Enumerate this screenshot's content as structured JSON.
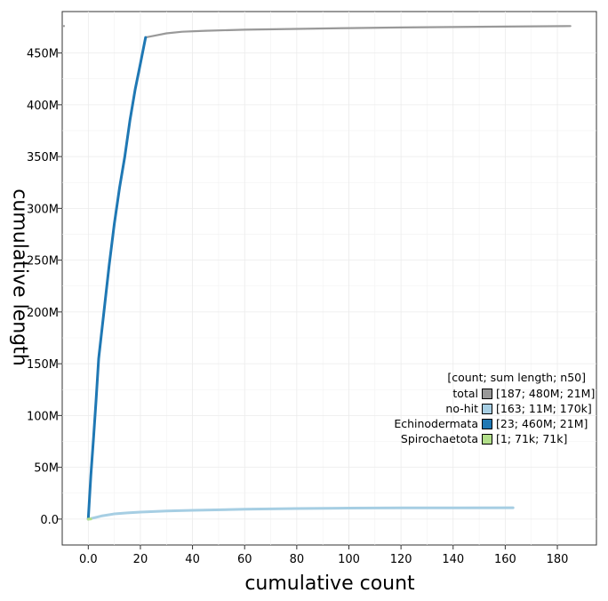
{
  "chart_data": {
    "type": "line",
    "xlabel": "cumulative count",
    "ylabel": "cumulative length",
    "xlim": [
      -10,
      195
    ],
    "ylim": [
      -25,
      490
    ],
    "x_ticks": [
      0,
      20,
      40,
      60,
      80,
      100,
      120,
      140,
      160,
      180
    ],
    "x_tick_labels": [
      "0.0",
      "20",
      "40",
      "60",
      "80",
      "100",
      "120",
      "140",
      "160",
      "180"
    ],
    "y_ticks": [
      0,
      50,
      100,
      150,
      200,
      250,
      300,
      350,
      400,
      450
    ],
    "y_tick_labels": [
      "0.0",
      "50M",
      "100M",
      "150M",
      "200M",
      "250M",
      "300M",
      "350M",
      "400M",
      "450M"
    ],
    "grid": true,
    "legend": {
      "title": "[count; sum length; n50]",
      "position": "right",
      "entries": [
        {
          "name": "total",
          "color": "#999999",
          "label": "[187; 480M; 21M]"
        },
        {
          "name": "no-hit",
          "color": "#a6cee3",
          "label": "[163; 11M; 170k]"
        },
        {
          "name": "Echinodermata",
          "color": "#1f78b4",
          "label": "[23; 460M; 21M]"
        },
        {
          "name": "Spirochaetota",
          "color": "#b2df8a",
          "label": "[1; 71k; 71k]"
        }
      ]
    },
    "series": [
      {
        "name": "total",
        "color": "#999999",
        "x": [
          22,
          26,
          30,
          36,
          45,
          60,
          80,
          100,
          120,
          140,
          160,
          185
        ],
        "y": [
          465,
          467,
          469,
          470.5,
          471.5,
          472.5,
          473.3,
          474,
          474.6,
          475.1,
          475.5,
          476
        ]
      },
      {
        "name": "no-hit",
        "color": "#a6cee3",
        "x": [
          1,
          5,
          10,
          15,
          20,
          30,
          40,
          60,
          80,
          100,
          120,
          140,
          163
        ],
        "y": [
          0.5,
          3,
          5,
          6,
          6.8,
          7.8,
          8.5,
          9.5,
          10.2,
          10.6,
          10.8,
          10.9,
          11
        ]
      },
      {
        "name": "Echinodermata",
        "color": "#1f78b4",
        "x": [
          0,
          1,
          2,
          3,
          4,
          6,
          8,
          10,
          12,
          14,
          16,
          18,
          20,
          22
        ],
        "y": [
          0,
          42,
          78,
          115,
          155,
          200,
          245,
          285,
          320,
          350,
          385,
          415,
          440,
          465
        ]
      },
      {
        "name": "Spirochaetota",
        "color": "#b2df8a",
        "x": [
          0,
          1
        ],
        "y": [
          0,
          0.1
        ]
      }
    ]
  }
}
